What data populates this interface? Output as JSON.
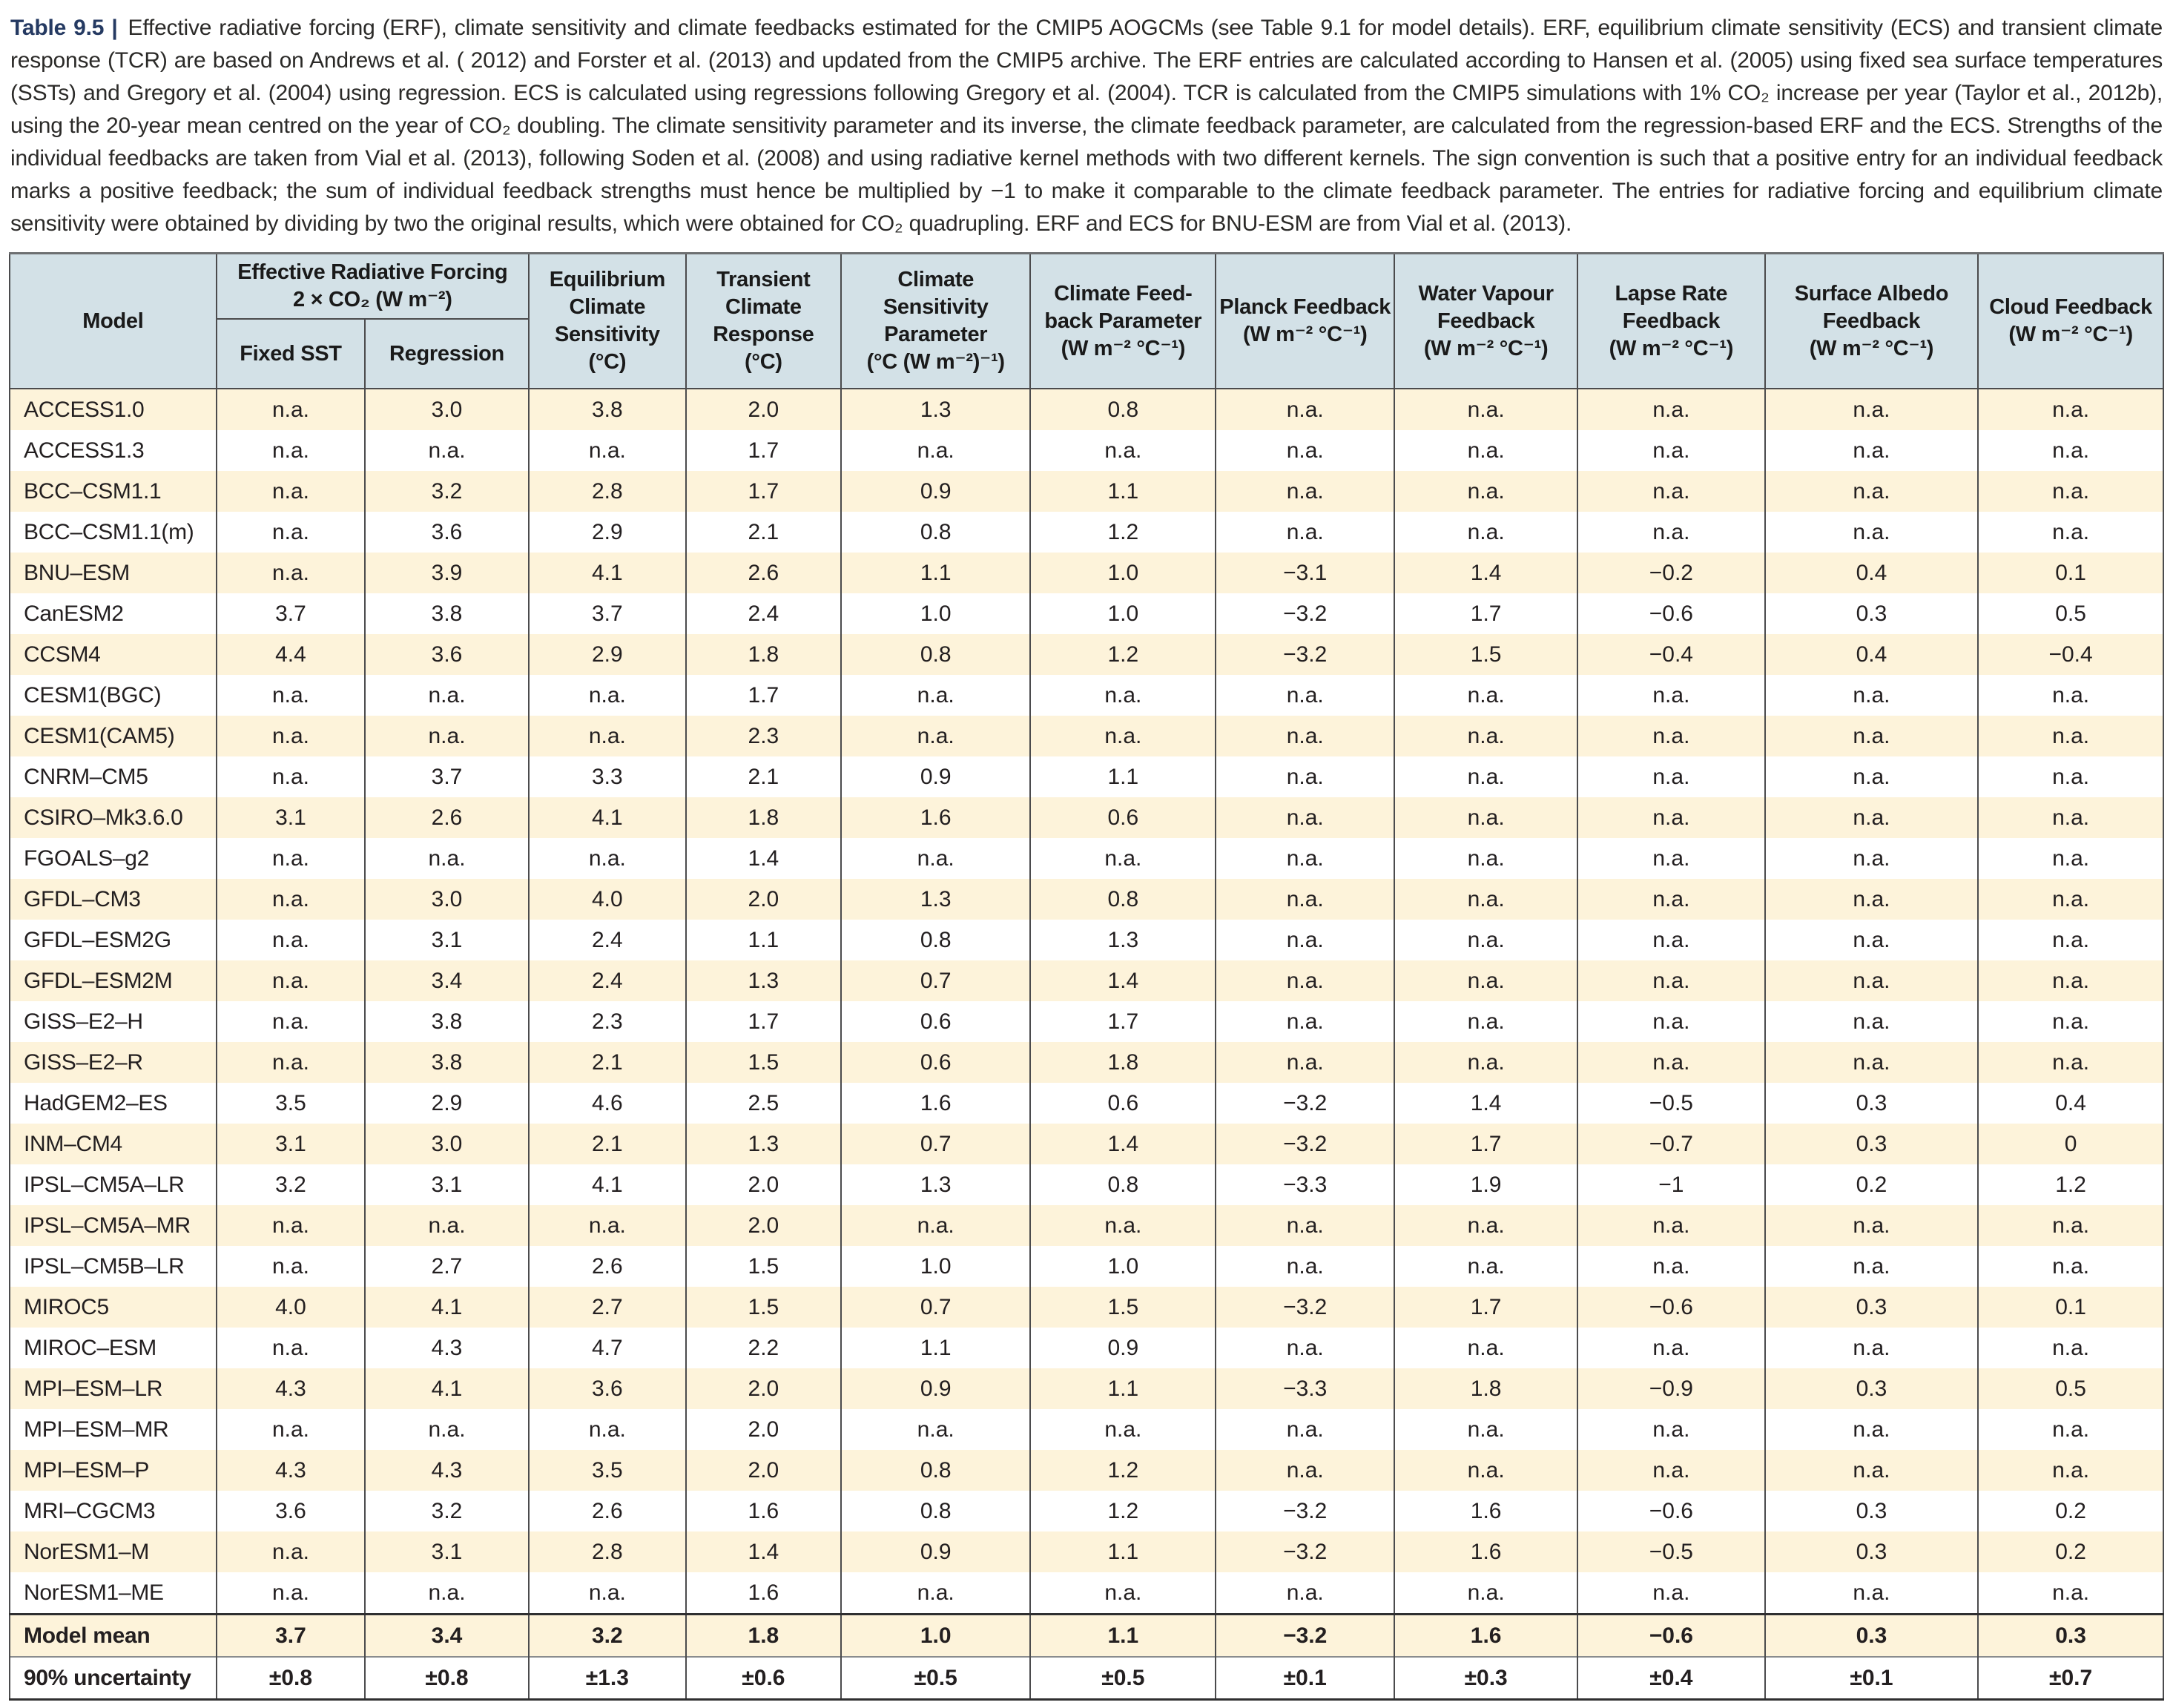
{
  "caption": {
    "label": "Table 9.5 |",
    "text": "Effective radiative forcing (ERF), climate sensitivity and climate feedbacks estimated for the CMIP5 AOGCMs (see Table 9.1 for model details). ERF, equilibrium climate sensitivity (ECS) and transient climate response (TCR) are based on Andrews et al. ( 2012) and Forster et al. (2013) and updated from the CMIP5 archive. The ERF entries are calculated according to Hansen et al. (2005) using fixed sea surface temperatures (SSTs) and Gregory et al. (2004) using regression. ECS is calculated using regressions following Gregory et al. (2004). TCR is calculated from the CMIP5 simulations with 1% CO₂ increase per year (Taylor et al., 2012b), using the 20-year mean centred on the year of CO₂ doubling. The climate sensitivity parameter and its inverse, the climate feedback parameter, are calculated from the regression-based ERF and the ECS. Strengths of the individual feedbacks are taken from Vial et al. (2013), following Soden et al. (2008) and using radiative kernel methods with two different kernels. The sign convention is such that a positive entry for an individual feedback marks a positive feedback; the sum of individual feedback strengths must hence be multiplied by −1 to make it comparable to the climate feedback parameter. The entries for radiative forcing and equilibrium climate sensitivity were obtained by dividing by two the original results, which were obtained for CO₂ quadrupling. ERF and ECS for BNU-ESM are from Vial et al. (2013)."
  },
  "table": {
    "header": {
      "model": "Model",
      "erf_group": "Effective Radiative Forcing\n2 × CO₂ (W m⁻²)",
      "fixed_sst": "Fixed SST",
      "regression": "Regression",
      "cols": [
        "Equilibrium\nClimate\nSensitivity\n(°C)",
        "Transient\nClimate\nResponse\n(°C)",
        "Climate\nSensitivity\nParameter\n(°C (W m⁻²)⁻¹)",
        "Climate Feed-\nback Parameter\n(W m⁻² °C⁻¹)",
        "Planck Feedback\n(W m⁻² °C⁻¹)",
        "Water Vapour\nFeedback\n(W m⁻² °C⁻¹)",
        "Lapse Rate\nFeedback\n(W m⁻² °C⁻¹)",
        "Surface Albedo\nFeedback\n(W m⁻² °C⁻¹)",
        "Cloud Feedback\n(W m⁻² °C⁻¹)"
      ]
    },
    "rows": [
      {
        "model": "ACCESS1.0",
        "values": [
          "n.a.",
          "3.0",
          "3.8",
          "2.0",
          "1.3",
          "0.8",
          "n.a.",
          "n.a.",
          "n.a.",
          "n.a.",
          "n.a."
        ]
      },
      {
        "model": "ACCESS1.3",
        "values": [
          "n.a.",
          "n.a.",
          "n.a.",
          "1.7",
          "n.a.",
          "n.a.",
          "n.a.",
          "n.a.",
          "n.a.",
          "n.a.",
          "n.a."
        ]
      },
      {
        "model": "BCC–CSM1.1",
        "values": [
          "n.a.",
          "3.2",
          "2.8",
          "1.7",
          "0.9",
          "1.1",
          "n.a.",
          "n.a.",
          "n.a.",
          "n.a.",
          "n.a."
        ]
      },
      {
        "model": "BCC–CSM1.1(m)",
        "values": [
          "n.a.",
          "3.6",
          "2.9",
          "2.1",
          "0.8",
          "1.2",
          "n.a.",
          "n.a.",
          "n.a.",
          "n.a.",
          "n.a."
        ]
      },
      {
        "model": "BNU–ESM",
        "values": [
          "n.a.",
          "3.9",
          "4.1",
          "2.6",
          "1.1",
          "1.0",
          "−3.1",
          "1.4",
          "−0.2",
          "0.4",
          "0.1"
        ]
      },
      {
        "model": "CanESM2",
        "values": [
          "3.7",
          "3.8",
          "3.7",
          "2.4",
          "1.0",
          "1.0",
          "−3.2",
          "1.7",
          "−0.6",
          "0.3",
          "0.5"
        ]
      },
      {
        "model": "CCSM4",
        "values": [
          "4.4",
          "3.6",
          "2.9",
          "1.8",
          "0.8",
          "1.2",
          "−3.2",
          "1.5",
          "−0.4",
          "0.4",
          "−0.4"
        ]
      },
      {
        "model": "CESM1(BGC)",
        "values": [
          "n.a.",
          "n.a.",
          "n.a.",
          "1.7",
          "n.a.",
          "n.a.",
          "n.a.",
          "n.a.",
          "n.a.",
          "n.a.",
          "n.a."
        ]
      },
      {
        "model": "CESM1(CAM5)",
        "values": [
          "n.a.",
          "n.a.",
          "n.a.",
          "2.3",
          "n.a.",
          "n.a.",
          "n.a.",
          "n.a.",
          "n.a.",
          "n.a.",
          "n.a."
        ]
      },
      {
        "model": "CNRM–CM5",
        "values": [
          "n.a.",
          "3.7",
          "3.3",
          "2.1",
          "0.9",
          "1.1",
          "n.a.",
          "n.a.",
          "n.a.",
          "n.a.",
          "n.a."
        ]
      },
      {
        "model": "CSIRO–Mk3.6.0",
        "values": [
          "3.1",
          "2.6",
          "4.1",
          "1.8",
          "1.6",
          "0.6",
          "n.a.",
          "n.a.",
          "n.a.",
          "n.a.",
          "n.a."
        ]
      },
      {
        "model": "FGOALS–g2",
        "values": [
          "n.a.",
          "n.a.",
          "n.a.",
          "1.4",
          "n.a.",
          "n.a.",
          "n.a.",
          "n.a.",
          "n.a.",
          "n.a.",
          "n.a."
        ]
      },
      {
        "model": "GFDL–CM3",
        "values": [
          "n.a.",
          "3.0",
          "4.0",
          "2.0",
          "1.3",
          "0.8",
          "n.a.",
          "n.a.",
          "n.a.",
          "n.a.",
          "n.a."
        ]
      },
      {
        "model": "GFDL–ESM2G",
        "values": [
          "n.a.",
          "3.1",
          "2.4",
          "1.1",
          "0.8",
          "1.3",
          "n.a.",
          "n.a.",
          "n.a.",
          "n.a.",
          "n.a."
        ]
      },
      {
        "model": "GFDL–ESM2M",
        "values": [
          "n.a.",
          "3.4",
          "2.4",
          "1.3",
          "0.7",
          "1.4",
          "n.a.",
          "n.a.",
          "n.a.",
          "n.a.",
          "n.a."
        ]
      },
      {
        "model": "GISS–E2–H",
        "values": [
          "n.a.",
          "3.8",
          "2.3",
          "1.7",
          "0.6",
          "1.7",
          "n.a.",
          "n.a.",
          "n.a.",
          "n.a.",
          "n.a."
        ]
      },
      {
        "model": "GISS–E2–R",
        "values": [
          "n.a.",
          "3.8",
          "2.1",
          "1.5",
          "0.6",
          "1.8",
          "n.a.",
          "n.a.",
          "n.a.",
          "n.a.",
          "n.a."
        ]
      },
      {
        "model": "HadGEM2–ES",
        "values": [
          "3.5",
          "2.9",
          "4.6",
          "2.5",
          "1.6",
          "0.6",
          "−3.2",
          "1.4",
          "−0.5",
          "0.3",
          "0.4"
        ]
      },
      {
        "model": "INM–CM4",
        "values": [
          "3.1",
          "3.0",
          "2.1",
          "1.3",
          "0.7",
          "1.4",
          "−3.2",
          "1.7",
          "−0.7",
          "0.3",
          "0"
        ]
      },
      {
        "model": "IPSL–CM5A–LR",
        "values": [
          "3.2",
          "3.1",
          "4.1",
          "2.0",
          "1.3",
          "0.8",
          "−3.3",
          "1.9",
          "−1",
          "0.2",
          "1.2"
        ]
      },
      {
        "model": "IPSL–CM5A–MR",
        "values": [
          "n.a.",
          "n.a.",
          "n.a.",
          "2.0",
          "n.a.",
          "n.a.",
          "n.a.",
          "n.a.",
          "n.a.",
          "n.a.",
          "n.a."
        ]
      },
      {
        "model": "IPSL–CM5B–LR",
        "values": [
          "n.a.",
          "2.7",
          "2.6",
          "1.5",
          "1.0",
          "1.0",
          "n.a.",
          "n.a.",
          "n.a.",
          "n.a.",
          "n.a."
        ]
      },
      {
        "model": "MIROC5",
        "values": [
          "4.0",
          "4.1",
          "2.7",
          "1.5",
          "0.7",
          "1.5",
          "−3.2",
          "1.7",
          "−0.6",
          "0.3",
          "0.1"
        ]
      },
      {
        "model": "MIROC–ESM",
        "values": [
          "n.a.",
          "4.3",
          "4.7",
          "2.2",
          "1.1",
          "0.9",
          "n.a.",
          "n.a.",
          "n.a.",
          "n.a.",
          "n.a."
        ]
      },
      {
        "model": "MPI–ESM–LR",
        "values": [
          "4.3",
          "4.1",
          "3.6",
          "2.0",
          "0.9",
          "1.1",
          "−3.3",
          "1.8",
          "−0.9",
          "0.3",
          "0.5"
        ]
      },
      {
        "model": "MPI–ESM–MR",
        "values": [
          "n.a.",
          "n.a.",
          "n.a.",
          "2.0",
          "n.a.",
          "n.a.",
          "n.a.",
          "n.a.",
          "n.a.",
          "n.a.",
          "n.a."
        ]
      },
      {
        "model": "MPI–ESM–P",
        "values": [
          "4.3",
          "4.3",
          "3.5",
          "2.0",
          "0.8",
          "1.2",
          "n.a.",
          "n.a.",
          "n.a.",
          "n.a.",
          "n.a."
        ]
      },
      {
        "model": "MRI–CGCM3",
        "values": [
          "3.6",
          "3.2",
          "2.6",
          "1.6",
          "0.8",
          "1.2",
          "−3.2",
          "1.6",
          "−0.6",
          "0.3",
          "0.2"
        ]
      },
      {
        "model": "NorESM1–M",
        "values": [
          "n.a.",
          "3.1",
          "2.8",
          "1.4",
          "0.9",
          "1.1",
          "−3.2",
          "1.6",
          "−0.5",
          "0.3",
          "0.2"
        ]
      },
      {
        "model": "NorESM1–ME",
        "values": [
          "n.a.",
          "n.a.",
          "n.a.",
          "1.6",
          "n.a.",
          "n.a.",
          "n.a.",
          "n.a.",
          "n.a.",
          "n.a.",
          "n.a."
        ]
      },
      {
        "model": "Model mean",
        "emphasis": true,
        "rule": "thick",
        "values": [
          "3.7",
          "3.4",
          "3.2",
          "1.8",
          "1.0",
          "1.1",
          "−3.2",
          "1.6",
          "−0.6",
          "0.3",
          "0.3"
        ]
      },
      {
        "model": "90% uncertainty",
        "emphasis": true,
        "rule": "thin",
        "values": [
          "±0.8",
          "±0.8",
          "±1.3",
          "±0.6",
          "±0.5",
          "±0.5",
          "±0.1",
          "±0.3",
          "±0.4",
          "±0.1",
          "±0.7"
        ]
      }
    ]
  },
  "colors": {
    "header_bg": "#d3e1e7",
    "stripe_bg": "#fdf3da",
    "caption_label_navy": "#253a62",
    "border_dark": "#4b4b4d",
    "text": "#231f20"
  }
}
